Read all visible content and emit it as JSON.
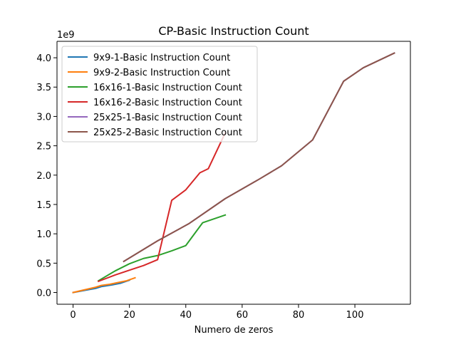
{
  "chart_data": {
    "type": "line",
    "title": "CP-Basic Instruction Count",
    "xlabel": "Numero de zeros",
    "ylabel": "",
    "y_offset_text": "1e9",
    "xlim": [
      -5.7,
      119.7
    ],
    "ylim": [
      -0.2,
      4.28
    ],
    "x_ticks": [
      0,
      20,
      40,
      60,
      80,
      100
    ],
    "y_ticks": [
      0.0,
      0.5,
      1.0,
      1.5,
      2.0,
      2.5,
      3.0,
      3.5,
      4.0
    ],
    "y_tick_labels": [
      "0.0",
      "0.5",
      "1.0",
      "1.5",
      "2.0",
      "2.5",
      "3.0",
      "3.5",
      "4.0"
    ],
    "grid": false,
    "legend_position": "upper-left",
    "series": [
      {
        "name": "9x9-1-Basic Instruction Count",
        "color": "#1f77b4",
        "x": [
          0,
          8,
          10,
          14,
          17,
          20
        ],
        "y": [
          0.0,
          0.07,
          0.1,
          0.13,
          0.16,
          0.21
        ]
      },
      {
        "name": "9x9-2-Basic Instruction Count",
        "color": "#ff7f0e",
        "x": [
          0,
          8,
          10,
          13,
          16,
          19,
          22
        ],
        "y": [
          0.0,
          0.09,
          0.12,
          0.14,
          0.17,
          0.2,
          0.25
        ]
      },
      {
        "name": "16x16-1-Basic Instruction Count",
        "color": "#2ca02c",
        "x": [
          9,
          15,
          20,
          25,
          30,
          35,
          40,
          46,
          54
        ],
        "y": [
          0.2,
          0.37,
          0.49,
          0.58,
          0.63,
          0.71,
          0.8,
          1.19,
          1.32
        ]
      },
      {
        "name": "16x16-2-Basic Instruction Count",
        "color": "#d62728",
        "x": [
          9,
          15,
          20,
          25,
          30,
          35,
          40,
          45,
          48,
          54
        ],
        "y": [
          0.19,
          0.3,
          0.38,
          0.46,
          0.56,
          1.57,
          1.75,
          2.04,
          2.11,
          2.72
        ]
      },
      {
        "name": "25x25-1-Basic Instruction Count",
        "color": "#9467bd",
        "x": [
          18,
          30,
          41,
          54,
          66,
          74,
          85,
          96,
          103,
          114
        ],
        "y": [
          0.53,
          0.88,
          1.17,
          1.6,
          1.93,
          2.16,
          2.6,
          3.6,
          3.83,
          4.08
        ]
      },
      {
        "name": "25x25-2-Basic Instruction Count",
        "color": "#8c564b",
        "x": [
          18,
          30,
          41,
          54,
          66,
          74,
          85,
          96,
          103,
          114
        ],
        "y": [
          0.53,
          0.88,
          1.17,
          1.6,
          1.93,
          2.16,
          2.6,
          3.6,
          3.83,
          4.08
        ]
      }
    ]
  }
}
